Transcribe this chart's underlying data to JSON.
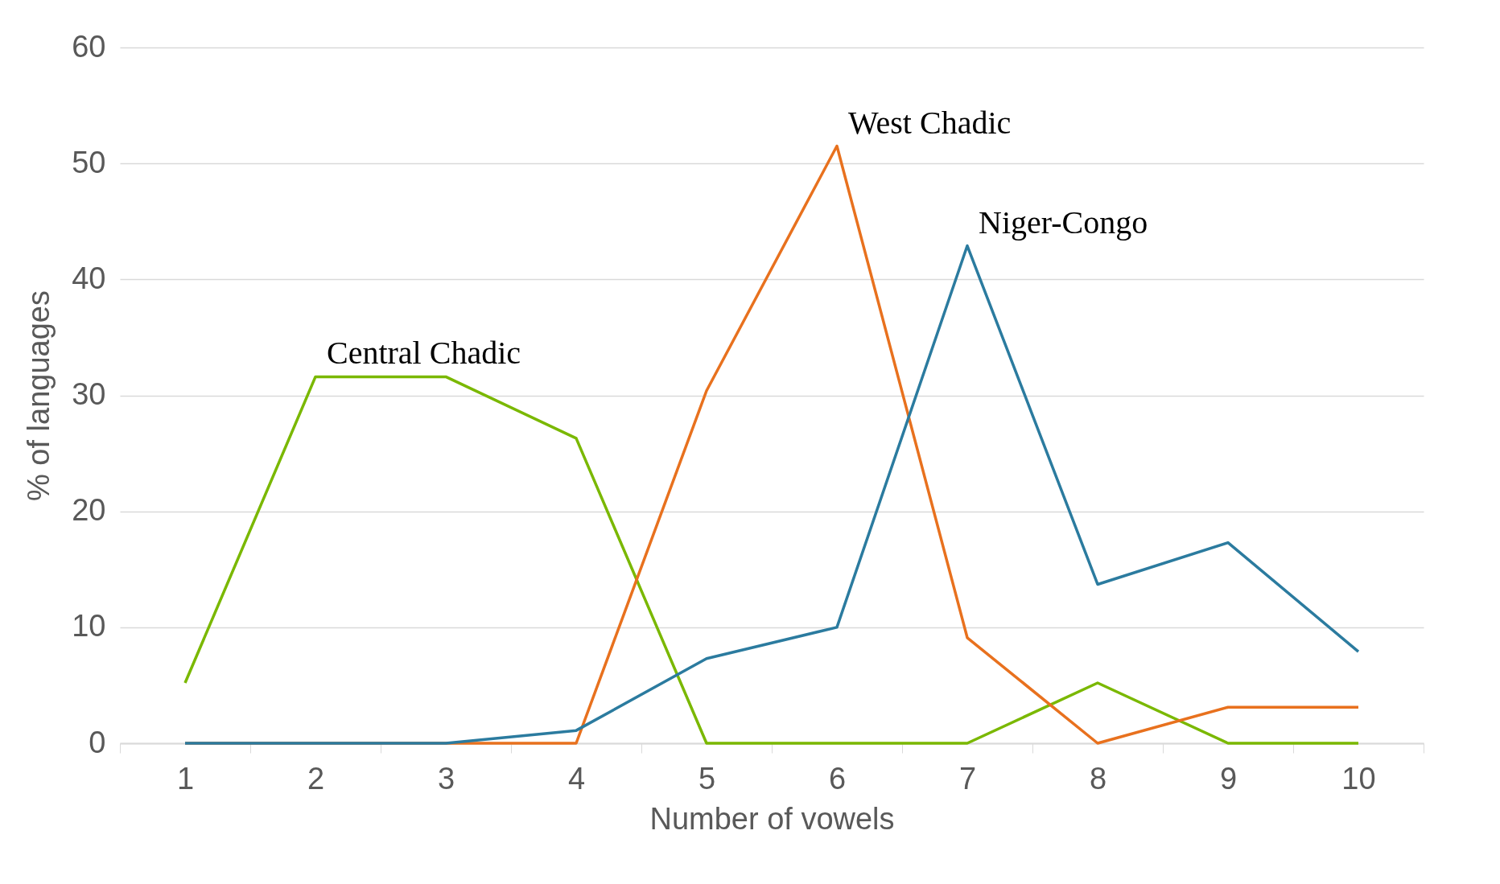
{
  "chart_data": {
    "type": "line",
    "xlabel": "Number of vowels",
    "ylabel": "% of languages",
    "categories": [
      "1",
      "2",
      "3",
      "4",
      "5",
      "6",
      "7",
      "8",
      "9",
      "10"
    ],
    "series": [
      {
        "name": "Central Chadic",
        "color": "#7ab800",
        "values": [
          5.2,
          31.6,
          31.6,
          26.3,
          0,
          0,
          0,
          5.2,
          0,
          0
        ]
      },
      {
        "name": "West Chadic",
        "color": "#e8711e",
        "values": [
          0,
          0,
          0,
          0,
          30.4,
          51.5,
          9.1,
          0,
          3.1,
          3.1
        ]
      },
      {
        "name": "Niger-Congo",
        "color": "#2b7b9f",
        "values": [
          0,
          0,
          0,
          1.1,
          7.3,
          10,
          42.9,
          13.7,
          17.3,
          7.9
        ]
      }
    ],
    "ylim": [
      0,
      60
    ],
    "yticks": [
      0,
      10,
      20,
      30,
      40,
      50,
      60
    ],
    "grid": "y",
    "legend": false,
    "marker": "none",
    "line_style": "solid"
  }
}
